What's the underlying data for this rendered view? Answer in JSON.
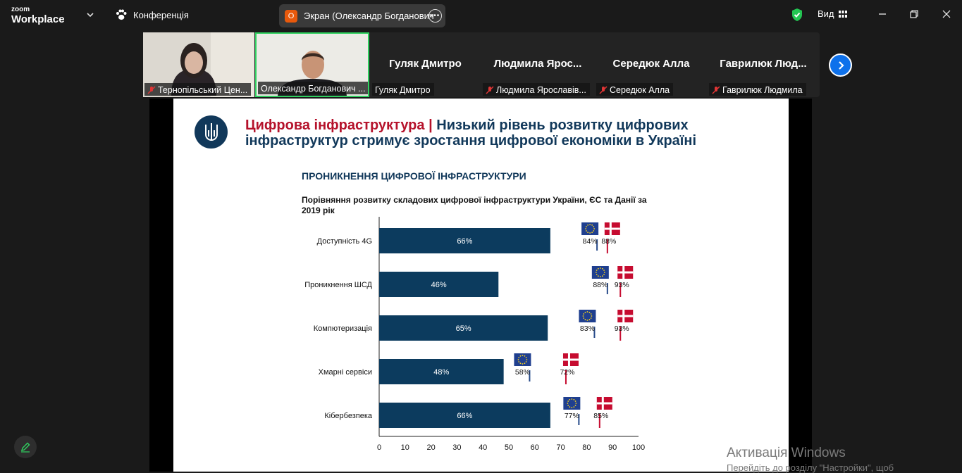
{
  "app": {
    "logo_line1": "zoom",
    "logo_line2": "Workplace"
  },
  "topbar": {
    "conference_label": "Конференція",
    "screen_share_badge": "О",
    "screen_share_label": "Экран (Олександр Богданович",
    "view_label": "Вид"
  },
  "participants": [
    {
      "name": "Тернопільський Цен...",
      "type": "video",
      "muted": true
    },
    {
      "name": "Олександр Богданович ...",
      "type": "video",
      "muted": false,
      "active": true
    },
    {
      "display": "Гуляк Дмитро",
      "name": "Гуляк Дмитро",
      "type": "name",
      "muted": false
    },
    {
      "display": "Людмила  Ярос...",
      "name": "Людмила Ярославів...",
      "type": "name",
      "muted": true
    },
    {
      "display": "Середюк Алла",
      "name": "Середюк Алла",
      "type": "name",
      "muted": true
    },
    {
      "display": "Гаврилюк  Люд...",
      "name": "Гаврилюк Людмила",
      "type": "name",
      "muted": true
    }
  ],
  "slide": {
    "title_red": "Цифрова інфраструктура |",
    "title_blue_1": "Низький рівень розвитку цифрових",
    "title_blue_2": "інфраструктур стримує зростання цифрової економіки в Україні",
    "section": "ПРОНИКНЕННЯ ЦИФРОВОЇ ІНФРАСТРУКТУРИ",
    "subtitle": "Порівняння розвитку складових цифрової інфраструктури України, ЄС та Данії за 2019 рік"
  },
  "chart_data": {
    "type": "bar",
    "orientation": "horizontal",
    "title": "Порівняння розвитку складових цифрової інфраструктури України, ЄС та Данії за 2019 рік",
    "categories": [
      "Доступність 4G",
      "Проникнення ШСД",
      "Комп'ютеризація",
      "Хмарні сервіси",
      "Кібербезпека"
    ],
    "category_labels": [
      "Доступність 4G",
      "Проникнення ШСД",
      "Компютеризація",
      "Хмарні сервіси",
      "Кібербезпека"
    ],
    "values": [
      66,
      46,
      65,
      48,
      66
    ],
    "value_labels": [
      "66%",
      "46%",
      "65%",
      "48%",
      "66%"
    ],
    "markers": [
      {
        "flag": "EU",
        "values": [
          84,
          88,
          83,
          58,
          77
        ],
        "labels": [
          "84%",
          "88%",
          "83%",
          "58%",
          "77%"
        ],
        "color": "#274a8a"
      },
      {
        "flag": "DK",
        "values": [
          88,
          93,
          93,
          72,
          85
        ],
        "labels": [
          "88%",
          "93%",
          "93%",
          "72%",
          "85%"
        ],
        "color": "#c60c30"
      }
    ],
    "xlim": [
      0,
      100
    ],
    "xticks": [
      "0",
      "10",
      "20",
      "30",
      "40",
      "50",
      "60",
      "70",
      "80",
      "90",
      "100"
    ],
    "bar_color": "#0c3b5e",
    "grid": false
  },
  "watermark": {
    "line1": "Активація Windows",
    "line2": "Перейдіть до розділу \"Настройки\", щоб"
  }
}
